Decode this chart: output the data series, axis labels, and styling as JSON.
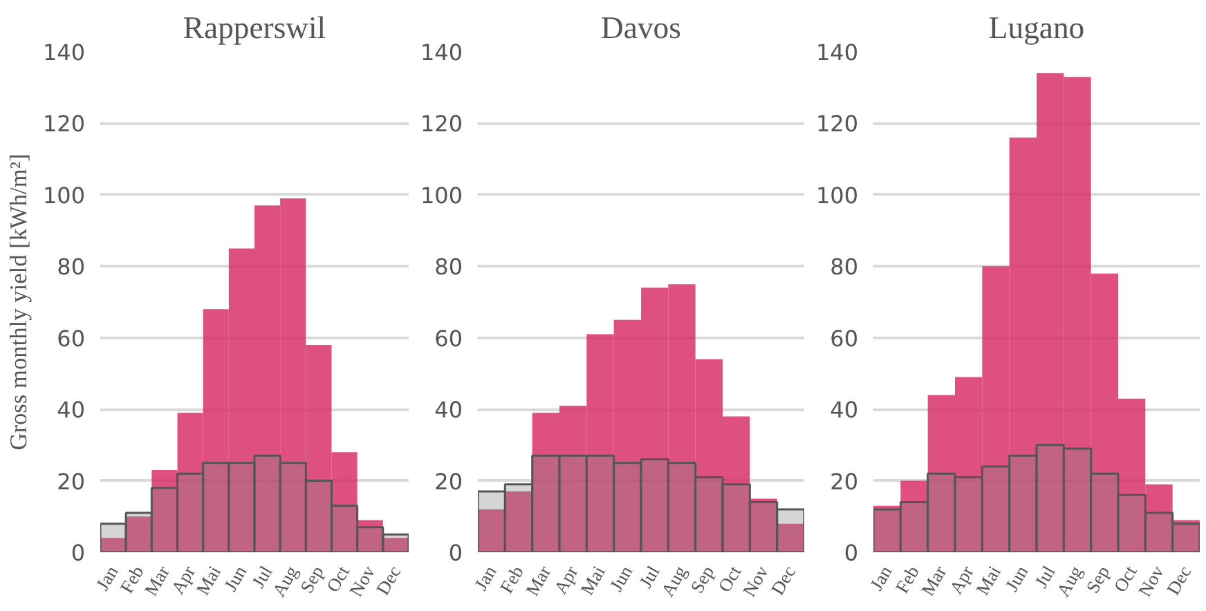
{
  "chart_data": [
    {
      "type": "bar",
      "title": "Rapperswil",
      "ylabel": "Gross monthly yield [kWh/m²]",
      "categories": [
        "Jan",
        "Feb",
        "Mar",
        "Apr",
        "Mai",
        "Jun",
        "Jul",
        "Aug",
        "Sep",
        "Oct",
        "Nov",
        "Dec"
      ],
      "series": [
        {
          "color": "#d6245f",
          "values": [
            4,
            10,
            23,
            39,
            68,
            85,
            97,
            99,
            58,
            28,
            9,
            4
          ]
        },
        {
          "color": "#8a8a8a",
          "values": [
            8,
            11,
            18,
            22,
            25,
            25,
            27,
            25,
            20,
            13,
            7,
            5
          ]
        }
      ],
      "ylim": [
        0,
        140
      ],
      "yticks": [
        0,
        20,
        40,
        60,
        80,
        100,
        120,
        140
      ],
      "grid": "y"
    },
    {
      "type": "bar",
      "title": "Davos",
      "categories": [
        "Jan",
        "Feb",
        "Mar",
        "Apr",
        "Mai",
        "Jun",
        "Jul",
        "Aug",
        "Sep",
        "Oct",
        "Nov",
        "Dec"
      ],
      "series": [
        {
          "color": "#d6245f",
          "values": [
            12,
            17,
            39,
            41,
            61,
            65,
            74,
            75,
            54,
            38,
            15,
            8
          ]
        },
        {
          "color": "#8a8a8a",
          "values": [
            17,
            19,
            27,
            27,
            27,
            25,
            26,
            25,
            21,
            19,
            14,
            12
          ]
        }
      ],
      "ylim": [
        0,
        140
      ],
      "yticks": [
        0,
        20,
        40,
        60,
        80,
        100,
        120,
        140
      ],
      "grid": "y"
    },
    {
      "type": "bar",
      "title": "Lugano",
      "categories": [
        "Jan",
        "Feb",
        "Mar",
        "Apr",
        "Mai",
        "Jun",
        "Jul",
        "Aug",
        "Sep",
        "Oct",
        "Nov",
        "Dec"
      ],
      "series": [
        {
          "color": "#d6245f",
          "values": [
            13,
            20,
            44,
            49,
            80,
            116,
            134,
            133,
            78,
            43,
            19,
            9
          ]
        },
        {
          "color": "#8a8a8a",
          "values": [
            12,
            14,
            22,
            21,
            24,
            27,
            30,
            29,
            22,
            16,
            11,
            8
          ]
        }
      ],
      "ylim": [
        0,
        140
      ],
      "yticks": [
        0,
        20,
        40,
        60,
        80,
        100,
        120,
        140
      ],
      "grid": "y"
    }
  ]
}
